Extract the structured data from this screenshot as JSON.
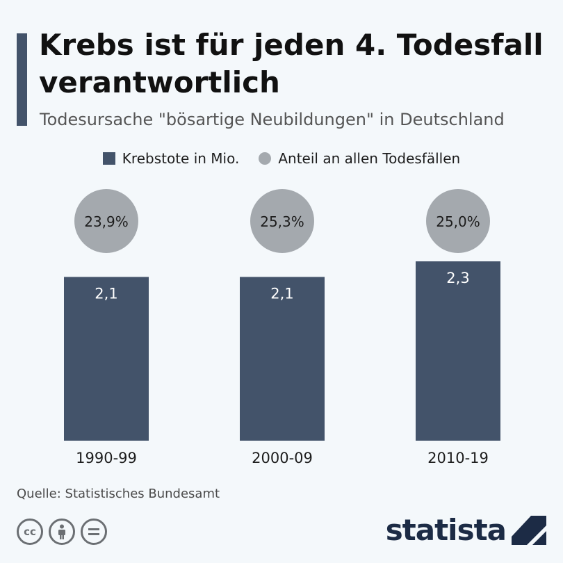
{
  "title": "Krebs ist für jeden 4. Todesfall verantwortlich",
  "subtitle": "Todesursache \"bösartige Neubildungen\" in Deutschland",
  "legend": {
    "bars_label": "Krebstote in Mio.",
    "circles_label": "Anteil an allen Todesfällen"
  },
  "colors": {
    "bar": "#43536a",
    "circle": "#a4a9ae",
    "accent": "#43536a"
  },
  "chart_data": {
    "type": "bar",
    "categories": [
      "1990-99",
      "2000-09",
      "2010-19"
    ],
    "series": [
      {
        "name": "Krebstote in Mio.",
        "values": [
          2.1,
          2.1,
          2.3
        ],
        "labels": [
          "2,1",
          "2,1",
          "2,3"
        ]
      },
      {
        "name": "Anteil an allen Todesfällen",
        "values": [
          23.9,
          25.3,
          25.0
        ],
        "labels": [
          "23,9%",
          "25,3%",
          "25,0%"
        ]
      }
    ],
    "ylim": [
      0,
      2.3
    ],
    "grid": false,
    "legend_position": "top-center"
  },
  "source": "Quelle: Statistisches Bundesamt",
  "license_icons": [
    "cc-icon",
    "by-icon",
    "nd-icon"
  ],
  "brand": "statista"
}
